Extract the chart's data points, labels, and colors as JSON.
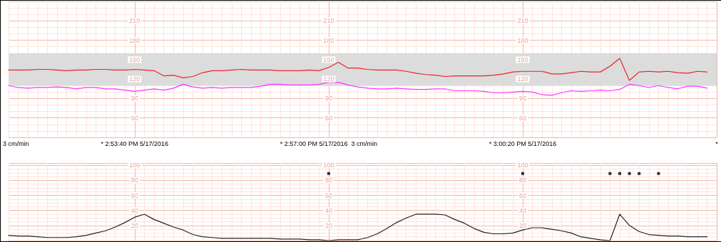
{
  "chart_data": [
    {
      "type": "line",
      "categories": [
        null,
        null,
        null,
        null,
        null,
        null,
        null,
        null,
        null,
        null,
        null,
        null,
        null,
        "* 2:53:40 PM 5/17/2016",
        null,
        null,
        null,
        null,
        null,
        null,
        null,
        null,
        null,
        null,
        null,
        null,
        null,
        null,
        null,
        null,
        null,
        null,
        null,
        "* 2:57:00 PM 5/17/2016  3 cm/min",
        null,
        null,
        null,
        null,
        null,
        null,
        null,
        null,
        null,
        null,
        null,
        null,
        null,
        null,
        null,
        null,
        null,
        null,
        null,
        "* 3:00:20 PM 5/17/2016",
        null,
        null,
        null,
        null,
        null,
        null,
        null,
        null,
        null,
        null,
        null,
        null,
        null,
        null,
        null,
        null,
        null,
        null,
        null,
        "*"
      ],
      "series": [
        {
          "color": "#ee2222",
          "values": [
            134,
            134,
            134,
            135,
            135,
            134,
            133,
            134,
            134,
            135,
            135,
            134,
            134,
            135,
            134,
            133,
            125,
            126,
            122,
            124,
            130,
            133,
            133,
            134,
            135,
            134,
            134,
            134,
            133,
            133,
            133,
            134,
            133,
            138,
            146,
            137,
            137,
            135,
            134,
            134,
            134,
            132,
            129,
            127,
            126,
            124,
            125,
            125,
            125,
            125,
            126,
            128,
            131,
            132,
            132,
            132,
            128,
            128,
            130,
            132,
            131,
            131,
            140,
            152,
            118,
            131,
            132,
            131,
            132,
            130,
            129,
            132,
            131,
            null
          ]
        },
        {
          "color": "#ff33ff",
          "values": [
            110,
            107,
            106,
            107,
            107,
            108,
            107,
            105,
            107,
            107,
            105,
            105,
            103,
            101,
            103,
            105,
            103,
            106,
            112,
            108,
            106,
            107,
            106,
            107,
            107,
            107,
            109,
            112,
            112,
            111,
            111,
            111,
            112,
            115,
            115,
            111,
            108,
            106,
            105,
            105,
            106,
            105,
            104,
            104,
            105,
            105,
            102,
            102,
            102,
            101,
            99,
            99,
            100,
            101,
            100,
            96,
            95,
            99,
            102,
            101,
            102,
            103,
            102,
            104,
            112,
            110,
            107,
            110,
            107,
            105,
            109,
            109,
            106,
            null
          ]
        }
      ],
      "ylim": [
        30,
        240
      ],
      "yticks": [
        60,
        90,
        120,
        150,
        180,
        210
      ],
      "y2lim": [
        30,
        240
      ],
      "y2ticks": [
        60,
        90,
        120,
        150,
        180,
        210
      ],
      "y3lim": [
        30,
        240
      ],
      "y3ticks": [
        60,
        90,
        120,
        150,
        180,
        210
      ],
      "bands": [
        {
          "axis": "y",
          "from": 110,
          "to": 160,
          "color": "#dcdcdc"
        }
      ],
      "annotations": [
        "3 cm/min"
      ],
      "grid": true,
      "marker": "none",
      "line_style": "solid"
    },
    {
      "type": "line",
      "categories": [
        null,
        null,
        null,
        null,
        null,
        null,
        null,
        null,
        null,
        null,
        null,
        null,
        null,
        "* 2:53:40 PM 5/17/2016",
        null,
        null,
        null,
        null,
        null,
        null,
        null,
        null,
        null,
        null,
        null,
        null,
        null,
        null,
        null,
        null,
        null,
        null,
        null,
        "* 2:57:00 PM 5/17/2016  3 cm/min",
        null,
        null,
        null,
        null,
        null,
        null,
        null,
        null,
        null,
        null,
        null,
        null,
        null,
        null,
        null,
        null,
        null,
        null,
        null,
        "* 3:00:20 PM 5/17/2016",
        null,
        null,
        null,
        null,
        null,
        null,
        null,
        null,
        null,
        null,
        null,
        null,
        null,
        null,
        null,
        null,
        null,
        null,
        null,
        "*"
      ],
      "series": [
        {
          "color": "#222222",
          "values": [
            7,
            6,
            6,
            5,
            4,
            4,
            4,
            5,
            7,
            10,
            13,
            18,
            24,
            31,
            35,
            28,
            23,
            18,
            14,
            8,
            5,
            4,
            3,
            3,
            3,
            3,
            3,
            3,
            2,
            2,
            2,
            1,
            1,
            0,
            1,
            1,
            1,
            4,
            9,
            16,
            24,
            30,
            35,
            35,
            35,
            34,
            28,
            23,
            16,
            11,
            9,
            9,
            10,
            14,
            17,
            17,
            15,
            13,
            10,
            5,
            3,
            1,
            0,
            35,
            20,
            12,
            8,
            7,
            6,
            6,
            5,
            5,
            5,
            null
          ]
        },
        {
          "type": "scatter",
          "marker": "square",
          "color": "#000000",
          "values": [
            null,
            null,
            null,
            null,
            null,
            null,
            null,
            null,
            null,
            null,
            null,
            null,
            null,
            null,
            null,
            null,
            null,
            null,
            null,
            null,
            null,
            null,
            null,
            null,
            null,
            null,
            null,
            null,
            null,
            null,
            null,
            null,
            null,
            89,
            null,
            null,
            null,
            null,
            null,
            null,
            null,
            null,
            null,
            null,
            null,
            null,
            null,
            null,
            null,
            null,
            null,
            null,
            null,
            89,
            null,
            null,
            null,
            null,
            null,
            null,
            null,
            null,
            89,
            89,
            89,
            89,
            null,
            89,
            null,
            null,
            null,
            null,
            null,
            null
          ]
        }
      ],
      "ylim": [
        0,
        103
      ],
      "yticks": [
        20,
        40,
        60,
        80,
        100
      ],
      "y2lim": [
        0,
        103
      ],
      "y2ticks": [
        20,
        40,
        60,
        80,
        100
      ],
      "y3lim": [
        0,
        103
      ],
      "y3ticks": [
        20,
        40,
        60,
        80,
        100
      ],
      "tick_labels": "y",
      "grid": true,
      "marker": "none",
      "line_style": "solid"
    }
  ]
}
